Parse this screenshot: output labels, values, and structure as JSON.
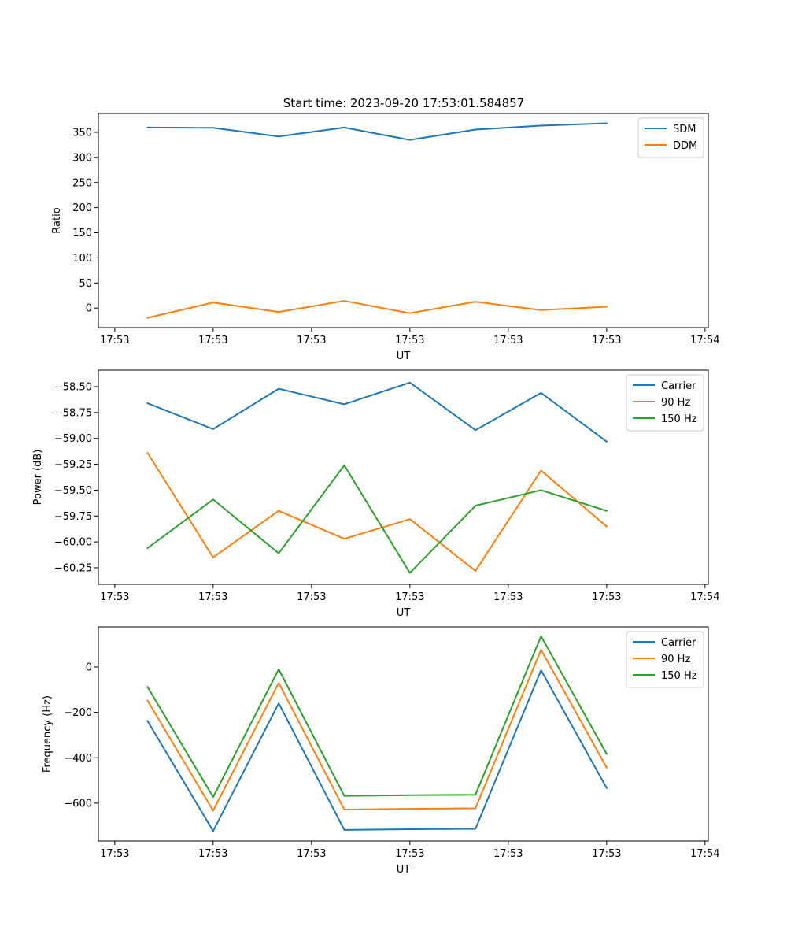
{
  "figure": {
    "title": "Start time: 2023-09-20 17:53:01.584857"
  },
  "chart_data": [
    {
      "type": "line",
      "name": "ratio",
      "xlabel": "UT",
      "ylabel": "Ratio",
      "x": [
        1,
        2,
        3,
        4,
        5,
        6,
        7,
        8
      ],
      "xlim": [
        0.25,
        9.55
      ],
      "xticks": [
        0.5,
        2,
        3.5,
        5,
        6.5,
        8,
        9.5
      ],
      "xtick_labels": [
        "17:53",
        "17:53",
        "17:53",
        "17:53",
        "17:53",
        "17:53",
        "17:54"
      ],
      "ylim": [
        -38.9,
        387.6
      ],
      "yticks": [
        0,
        50,
        100,
        150,
        200,
        250,
        300,
        350
      ],
      "ytick_labels": [
        "0",
        "50",
        "100",
        "150",
        "200",
        "250",
        "300",
        "350"
      ],
      "legend": "top-right",
      "series": [
        {
          "name": "SDM",
          "color": "#1f77b4",
          "values": [
            359.6,
            358.9,
            341.8,
            359.6,
            334.8,
            355.4,
            363.3,
            368.0
          ]
        },
        {
          "name": "DDM",
          "color": "#ff7f0e",
          "values": [
            -19.5,
            11.1,
            -7.8,
            14.3,
            -10.2,
            12.6,
            -4.0,
            2.8
          ]
        }
      ]
    },
    {
      "type": "line",
      "name": "power",
      "xlabel": "UT",
      "ylabel": "Power (dB)",
      "x": [
        1,
        2,
        3,
        4,
        5,
        6,
        7,
        8
      ],
      "xlim": [
        0.25,
        9.55
      ],
      "xticks": [
        0.5,
        2,
        3.5,
        5,
        6.5,
        8,
        9.5
      ],
      "xtick_labels": [
        "17:53",
        "17:53",
        "17:53",
        "17:53",
        "17:53",
        "17:53",
        "17:54"
      ],
      "ylim": [
        -60.41,
        -58.34
      ],
      "yticks": [
        -58.5,
        -58.75,
        -59.0,
        -59.25,
        -59.5,
        -59.75,
        -60.0,
        -60.25
      ],
      "ytick_labels": [
        "−58.50",
        "−58.75",
        "−59.00",
        "−59.25",
        "−59.50",
        "−59.75",
        "−60.00",
        "−60.25"
      ],
      "legend": "top-right",
      "series": [
        {
          "name": "Carrier",
          "color": "#1f77b4",
          "values": [
            -58.66,
            -58.91,
            -58.52,
            -58.67,
            -58.46,
            -58.92,
            -58.56,
            -59.03
          ]
        },
        {
          "name": "90 Hz",
          "color": "#ff7f0e",
          "values": [
            -59.14,
            -60.15,
            -59.7,
            -59.97,
            -59.78,
            -60.28,
            -59.31,
            -59.85
          ]
        },
        {
          "name": "150 Hz",
          "color": "#2ca02c",
          "values": [
            -60.06,
            -59.59,
            -60.11,
            -59.26,
            -60.3,
            -59.65,
            -59.5,
            -59.7
          ]
        }
      ]
    },
    {
      "type": "line",
      "name": "frequency",
      "xlabel": "UT",
      "ylabel": "Frequency (Hz)",
      "x": [
        1,
        2,
        3,
        4,
        5,
        6,
        7,
        8
      ],
      "xlim": [
        0.25,
        9.55
      ],
      "xticks": [
        0.5,
        2,
        3.5,
        5,
        6.5,
        8,
        9.5
      ],
      "xtick_labels": [
        "17:53",
        "17:53",
        "17:53",
        "17:53",
        "17:53",
        "17:53",
        "17:54"
      ],
      "ylim": [
        -767,
        177
      ],
      "yticks": [
        0,
        -200,
        -400,
        -600
      ],
      "ytick_labels": [
        "0",
        "−200",
        "−400",
        "−600"
      ],
      "legend": "top-right",
      "series": [
        {
          "name": "Carrier",
          "color": "#1f77b4",
          "values": [
            -238,
            -723,
            -160,
            -718,
            -715,
            -713,
            -14,
            -533
          ]
        },
        {
          "name": "90 Hz",
          "color": "#ff7f0e",
          "values": [
            -148,
            -633,
            -70,
            -628,
            -625,
            -623,
            76,
            -443
          ]
        },
        {
          "name": "150 Hz",
          "color": "#2ca02c",
          "values": [
            -88,
            -573,
            -10,
            -568,
            -565,
            -563,
            136,
            -383
          ]
        }
      ]
    }
  ]
}
